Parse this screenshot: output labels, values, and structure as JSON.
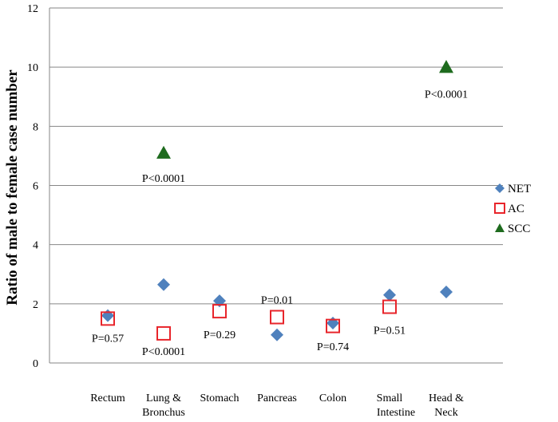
{
  "chart_data": {
    "type": "scatter",
    "ylabel": "Ratio of male to female case number",
    "xlabel": "",
    "ylim": [
      0,
      12
    ],
    "yticks": [
      0,
      2,
      4,
      6,
      8,
      10,
      12
    ],
    "grid": true,
    "legend_position": "right",
    "categories": [
      [
        "Rectum"
      ],
      [
        "Lung &",
        "Bronchus"
      ],
      [
        "Stomach"
      ],
      [
        "Pancreas"
      ],
      [
        "Colon"
      ],
      [
        "Small",
        "Intestine"
      ],
      [
        "Head &",
        "Neck"
      ]
    ],
    "series": [
      {
        "name": "NET",
        "marker": "diamond",
        "color": "#4f81bd",
        "values": [
          1.6,
          2.65,
          2.1,
          0.95,
          1.35,
          2.3,
          2.4
        ]
      },
      {
        "name": "AC",
        "marker": "square-open",
        "color": "#e8252b",
        "values": [
          1.5,
          1.0,
          1.75,
          1.55,
          1.25,
          1.9,
          null
        ]
      },
      {
        "name": "SCC",
        "marker": "triangle",
        "color": "#1e6b1e",
        "values": [
          null,
          7.1,
          null,
          null,
          null,
          null,
          10.0
        ]
      }
    ],
    "annotations": [
      {
        "category": 0,
        "y": 0.85,
        "text": "P=0.57"
      },
      {
        "category": 1,
        "y": 6.25,
        "text": "P<0.0001"
      },
      {
        "category": 1,
        "y": 0.4,
        "text": "P<0.0001"
      },
      {
        "category": 2,
        "y": 0.97,
        "text": "P=0.29"
      },
      {
        "category": 3,
        "y": 2.15,
        "text": "P=0.01"
      },
      {
        "category": 4,
        "y": 0.57,
        "text": "P=0.74"
      },
      {
        "category": 5,
        "y": 1.12,
        "text": "P=0.51"
      },
      {
        "category": 6,
        "y": 9.1,
        "text": "P<0.0001"
      }
    ]
  }
}
